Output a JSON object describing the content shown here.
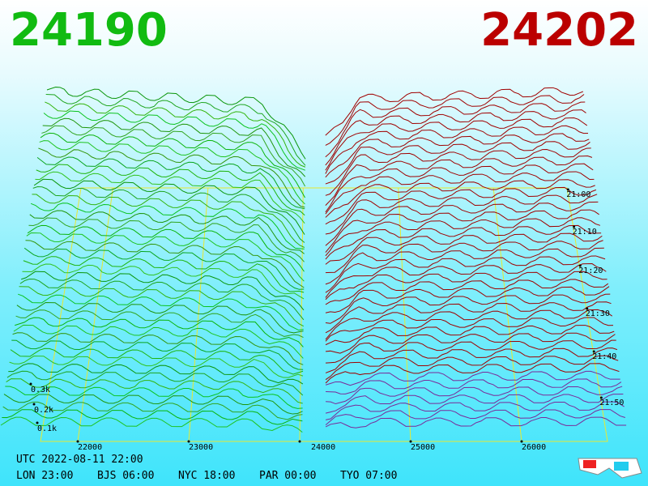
{
  "header": {
    "bid": "24190",
    "ask": "24202"
  },
  "price_axis": [
    "22000",
    "23000",
    "24000",
    "25000",
    "26000"
  ],
  "time_axis": [
    "21:00",
    "21:10",
    "21:20",
    "21:30",
    "21:40",
    "21:50"
  ],
  "volume_axis": [
    "0.3k",
    "0.2k",
    "0.1k"
  ],
  "footer": {
    "utc": "UTC 2022-08-11 22:00",
    "zones": [
      "LON 23:00",
      "BJS 06:00",
      "NYC 18:00",
      "PAR 00:00",
      "TYO 07:00"
    ]
  }
}
